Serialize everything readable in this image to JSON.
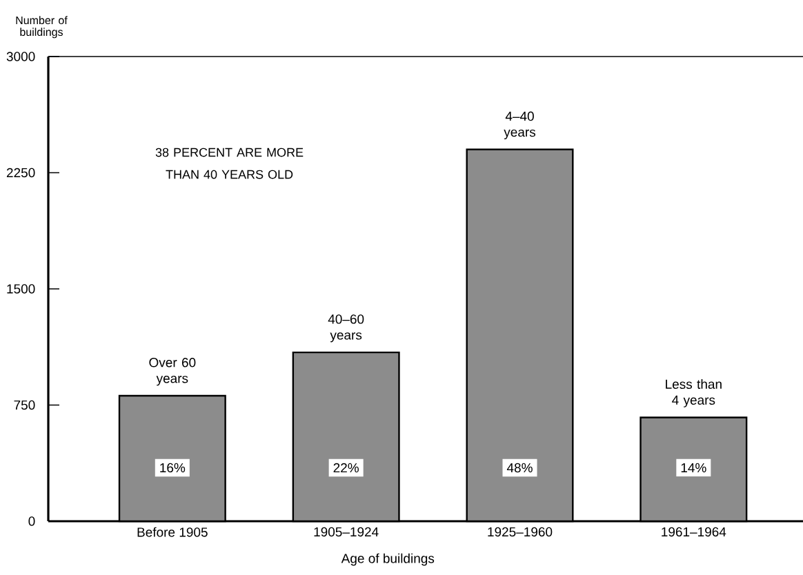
{
  "chart_data": {
    "type": "bar",
    "xlabel": "Age of buildings",
    "ylabel": "Number of buildings",
    "categories": [
      "Before 1905",
      "1905–1924",
      "1925–1960",
      "1961–1964"
    ],
    "values": [
      810,
      1090,
      2400,
      670
    ],
    "color": "#8c8c8c",
    "ylim": [
      0,
      3000
    ],
    "yticks": [
      0,
      750,
      1500,
      2250,
      3000
    ],
    "annotations": [
      "38 PERCENT ARE MORE THAN 40 YEARS OLD",
      {
        "text": "Over 60 years",
        "x": "Before 1905",
        "y": 810
      },
      {
        "text": "40–60 years",
        "x": "1905–1924",
        "y": 1090
      },
      {
        "text": "4–40 years",
        "x": "1925–1960",
        "y": 2400
      },
      {
        "text": "Less than 4 years",
        "x": "1961–1964",
        "y": 670
      },
      "16%",
      "22%",
      "48%",
      "14%"
    ]
  }
}
